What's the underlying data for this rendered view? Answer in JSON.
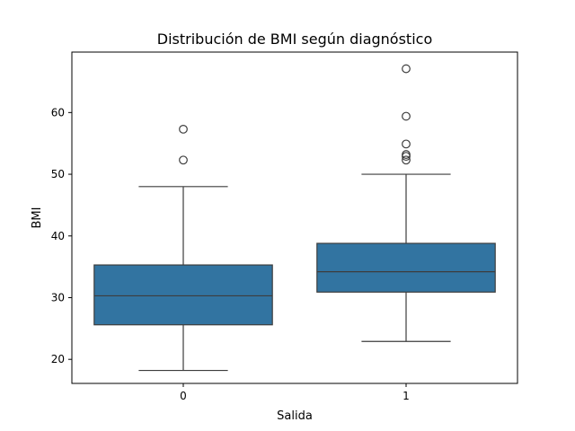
{
  "chart_data": {
    "type": "box",
    "title": "Distribución de BMI según diagnóstico",
    "xlabel": "Salida",
    "ylabel": "BMI",
    "categories": [
      "0",
      "1"
    ],
    "y_ticks": [
      20,
      30,
      40,
      50,
      60
    ],
    "ylim": [
      16.1,
      69.8
    ],
    "grid": false,
    "box_color": "#3274a1",
    "line_color": "#3d3d3d",
    "boxes": [
      {
        "category": "0",
        "whisker_low": 18.2,
        "q1": 25.6,
        "median": 30.3,
        "q3": 35.3,
        "whisker_high": 48.0,
        "outliers": [
          52.3,
          57.3
        ]
      },
      {
        "category": "1",
        "whisker_low": 22.9,
        "q1": 30.9,
        "median": 34.2,
        "q3": 38.8,
        "whisker_high": 50.0,
        "outliers": [
          52.3,
          52.9,
          53.2,
          54.9,
          59.4,
          67.1
        ]
      }
    ]
  }
}
